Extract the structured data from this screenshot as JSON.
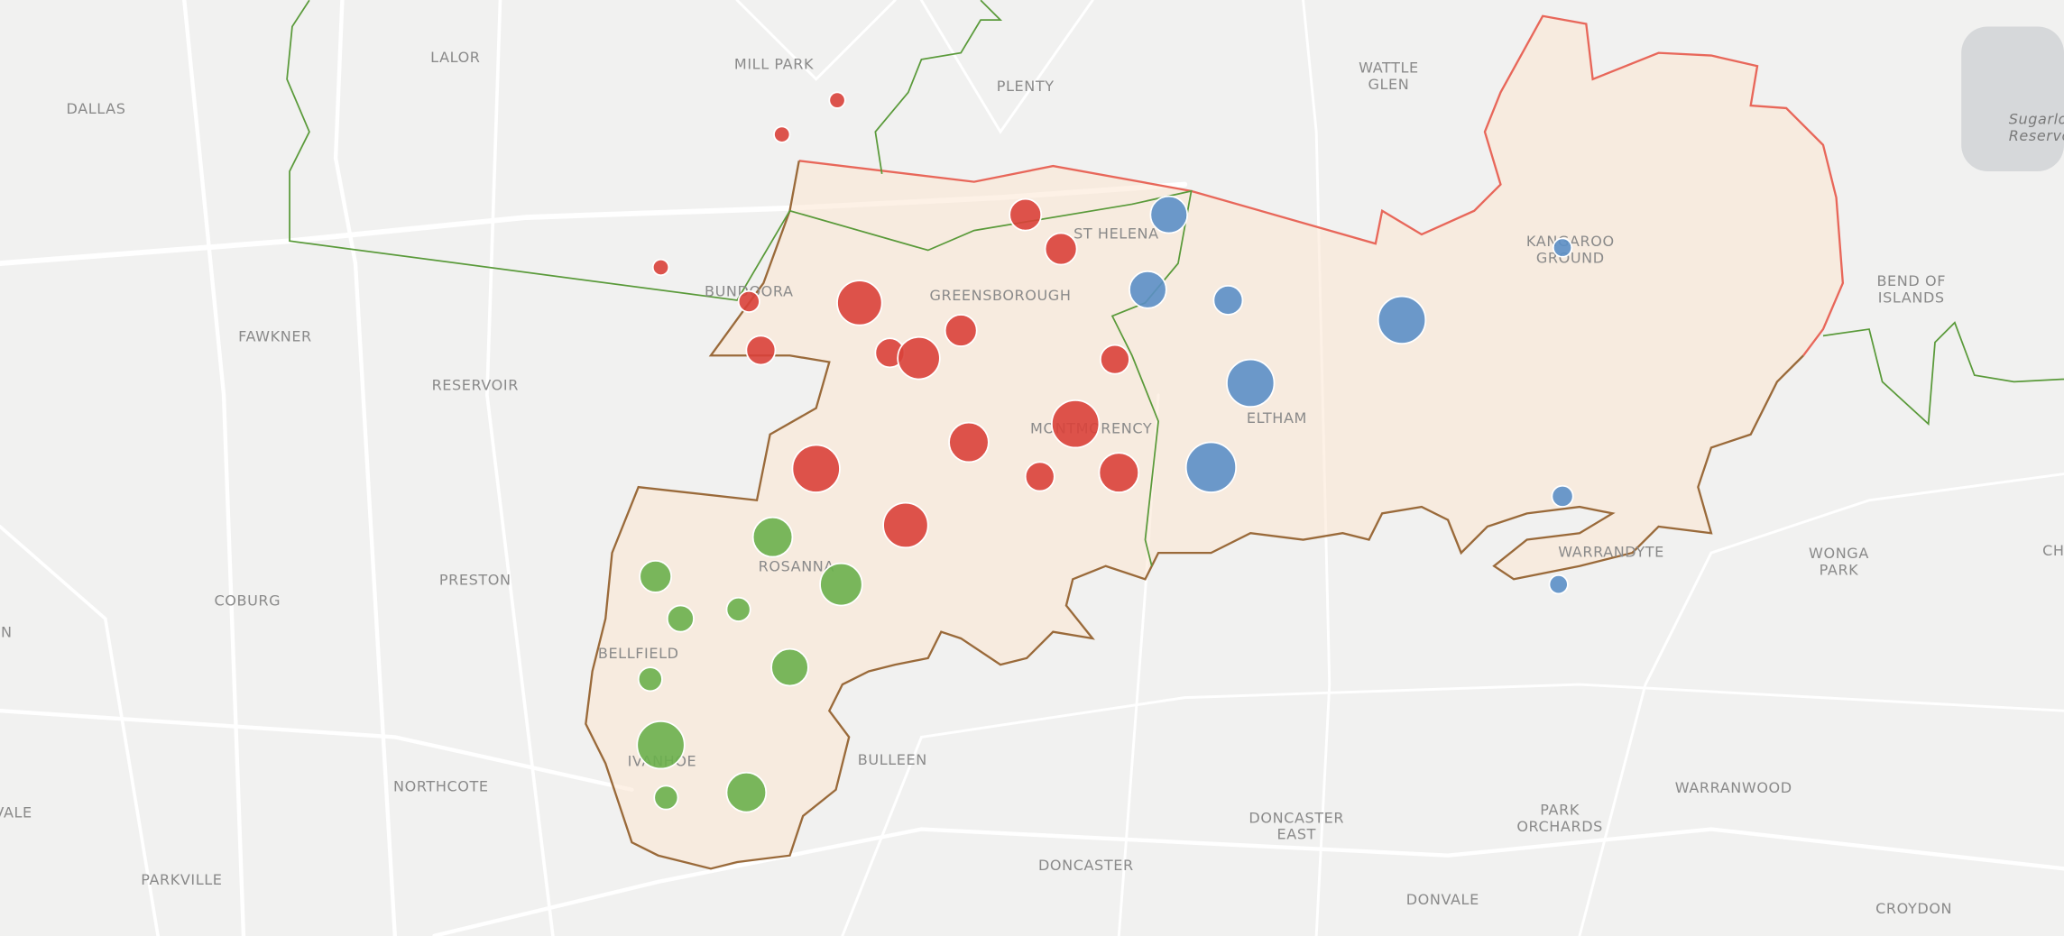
{
  "map": {
    "labels": [
      [
        "LALOR"
      ],
      [
        "MILL PARK"
      ],
      [
        "PLENTY"
      ],
      [
        "WATTLE",
        "GLEN"
      ],
      [
        "Sugarloaf",
        "Reservoir"
      ],
      [
        "DALLAS"
      ],
      [
        "FAWKNER"
      ],
      [
        "RESERVOIR"
      ],
      [
        "BUNDOORA"
      ],
      [
        "GREENSBOROUGH"
      ],
      [
        "ST HELENA"
      ],
      [
        "KANGAROO",
        "GROUND"
      ],
      [
        "BEND OF",
        "ISLANDS"
      ],
      [
        "MONTMORENCY"
      ],
      [
        "ELTHAM"
      ],
      [
        "PRESTON"
      ],
      [
        "COBURG"
      ],
      [
        "ROSANNA"
      ],
      [
        "BELLFIELD"
      ],
      [
        "IVANHOE"
      ],
      [
        "BULLEEN"
      ],
      [
        "NORTHCOTE"
      ],
      [
        "WARRANDYTE"
      ],
      [
        "WONGA",
        "PARK"
      ],
      [
        "DONCASTER",
        "EAST"
      ],
      [
        "PARK",
        "ORCHARDS"
      ],
      [
        "WARRANWOOD"
      ],
      [
        "DONCASTER"
      ],
      [
        "DONVALE"
      ],
      [
        "CROYDON"
      ],
      [
        "PARKVILLE"
      ],
      [
        "VALE"
      ],
      [
        "N"
      ],
      [
        "CH"
      ]
    ]
  }
}
